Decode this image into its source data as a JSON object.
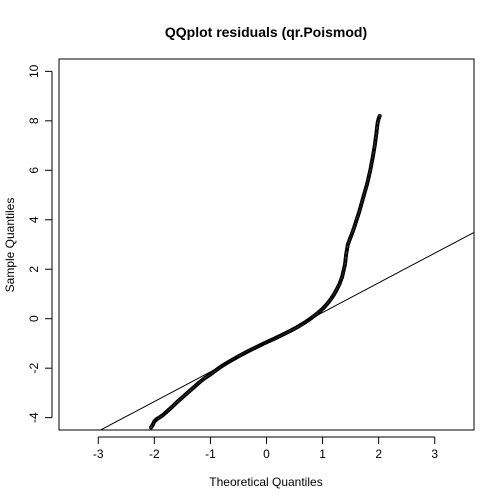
{
  "chart_data": {
    "type": "scatter",
    "title": "QQplot residuals (qr.Poismod)",
    "xlabel": "Theoretical Quantiles",
    "ylabel": "Sample Quantiles",
    "xlim": [
      -3.7,
      3.7
    ],
    "ylim": [
      -4.5,
      10.5
    ],
    "x_ticks": [
      -3,
      -2,
      -1,
      0,
      1,
      2,
      3
    ],
    "y_ticks": [
      -4,
      -2,
      0,
      2,
      4,
      6,
      8,
      10
    ],
    "grid": false,
    "legend": "none",
    "series": [
      {
        "marker": "open-circle",
        "color": "#000000",
        "points": [
          [
            -2.06,
            -4.4
          ],
          [
            -2.03,
            -4.3
          ],
          [
            -2.0,
            -4.15
          ],
          [
            -1.95,
            -4.05
          ],
          [
            -1.9,
            -3.98
          ],
          [
            -1.85,
            -3.9
          ],
          [
            -1.8,
            -3.8
          ],
          [
            -1.7,
            -3.6
          ],
          [
            -1.6,
            -3.38
          ],
          [
            -1.5,
            -3.18
          ],
          [
            -1.4,
            -2.98
          ],
          [
            -1.3,
            -2.78
          ],
          [
            -1.2,
            -2.58
          ],
          [
            -1.1,
            -2.4
          ],
          [
            -1.0,
            -2.25
          ],
          [
            -0.9,
            -2.08
          ],
          [
            -0.8,
            -1.92
          ],
          [
            -0.7,
            -1.78
          ],
          [
            -0.6,
            -1.65
          ],
          [
            -0.5,
            -1.52
          ],
          [
            -0.4,
            -1.4
          ],
          [
            -0.3,
            -1.28
          ],
          [
            -0.2,
            -1.17
          ],
          [
            -0.1,
            -1.06
          ],
          [
            0.0,
            -0.95
          ],
          [
            0.1,
            -0.85
          ],
          [
            0.2,
            -0.74
          ],
          [
            0.3,
            -0.63
          ],
          [
            0.4,
            -0.52
          ],
          [
            0.5,
            -0.4
          ],
          [
            0.6,
            -0.27
          ],
          [
            0.7,
            -0.13
          ],
          [
            0.8,
            0.03
          ],
          [
            0.9,
            0.2
          ],
          [
            1.0,
            0.4
          ],
          [
            1.05,
            0.52
          ],
          [
            1.1,
            0.65
          ],
          [
            1.15,
            0.8
          ],
          [
            1.2,
            0.97
          ],
          [
            1.25,
            1.17
          ],
          [
            1.3,
            1.4
          ],
          [
            1.35,
            1.7
          ],
          [
            1.4,
            2.2
          ],
          [
            1.42,
            2.6
          ],
          [
            1.45,
            3.0
          ],
          [
            1.5,
            3.3
          ],
          [
            1.55,
            3.6
          ],
          [
            1.6,
            3.95
          ],
          [
            1.65,
            4.3
          ],
          [
            1.7,
            4.7
          ],
          [
            1.75,
            5.1
          ],
          [
            1.8,
            5.5
          ],
          [
            1.85,
            6.0
          ],
          [
            1.9,
            6.6
          ],
          [
            1.93,
            7.0
          ],
          [
            1.96,
            7.5
          ],
          [
            1.98,
            7.9
          ],
          [
            2.0,
            8.1
          ],
          [
            2.02,
            8.2
          ]
        ]
      }
    ],
    "reference_line": {
      "intercept": -0.95,
      "slope": 1.2,
      "color": "#000000"
    }
  }
}
